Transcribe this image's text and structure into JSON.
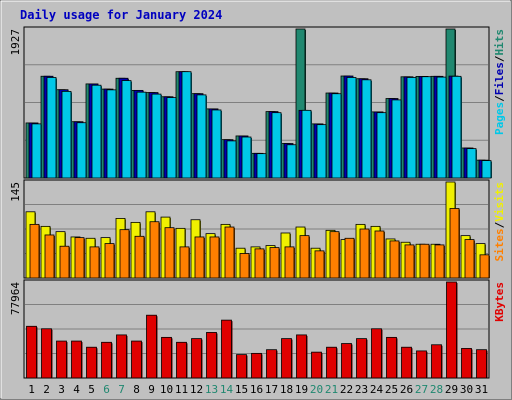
{
  "chart_data": {
    "type": "bar",
    "title": "Daily usage for January 2024",
    "categories": [
      "1",
      "2",
      "3",
      "4",
      "5",
      "6",
      "7",
      "8",
      "9",
      "10",
      "11",
      "12",
      "13",
      "14",
      "15",
      "16",
      "17",
      "18",
      "19",
      "20",
      "21",
      "22",
      "23",
      "24",
      "25",
      "26",
      "27",
      "28",
      "29",
      "30",
      "31"
    ],
    "weekend_days": [
      "6",
      "7",
      "13",
      "14",
      "20",
      "21",
      "27",
      "28"
    ],
    "panels": [
      {
        "id": "hits",
        "max_label": "1927",
        "ylim": [
          0,
          1927
        ],
        "right_label": [
          "Pages",
          "/",
          "Files",
          "/",
          "Hits"
        ],
        "right_label_colors": [
          "#00c8e8",
          "#000000",
          "#0000b0",
          "#000000",
          "#208870"
        ],
        "series": [
          {
            "name": "Hits",
            "color": "#208870",
            "values": [
              712,
              1316,
              1142,
              728,
              1217,
              1150,
              1290,
              1133,
              1105,
              1051,
              1375,
              1091,
              894,
              496,
              544,
              319,
              859,
              446,
              1927,
              700,
              1099,
              1319,
              1284,
              855,
              1028,
              1309,
              1314,
              1315,
              1927,
              388,
              231
            ]
          },
          {
            "name": "Files",
            "color": "#0000b0",
            "values": [
              712,
              1316,
              1142,
              728,
              1217,
              1150,
              1290,
              1133,
              1105,
              1051,
              1375,
              1091,
              894,
              496,
              544,
              319,
              859,
              446,
              875,
              700,
              1099,
              1319,
              1284,
              855,
              1028,
              1309,
              1314,
              1315,
              1318,
              388,
              231
            ]
          },
          {
            "name": "Pages",
            "color": "#00c8e8",
            "values": [
              700,
              1300,
              1120,
              715,
              1200,
              1140,
              1260,
              1110,
              1085,
              1040,
              1375,
              1075,
              880,
              480,
              530,
              315,
              845,
              430,
              875,
              690,
              1090,
              1300,
              1270,
              845,
              1010,
              1300,
              1310,
              1305,
              1315,
              380,
              225
            ]
          }
        ]
      },
      {
        "id": "visits",
        "max_label": "145",
        "ylim": [
          0,
          145
        ],
        "right_label": [
          "Sites",
          "/",
          "Visits"
        ],
        "right_label_colors": [
          "#ff8000",
          "#000000",
          "#f0f000"
        ],
        "series": [
          {
            "name": "Visits",
            "color": "#f0f000",
            "values": [
              100,
              78,
              70,
              62,
              60,
              61,
              90,
              84,
              100,
              92,
              75,
              88,
              67,
              81,
              45,
              47,
              49,
              68,
              77,
              45,
              72,
              58,
              81,
              78,
              59,
              54,
              51,
              51,
              145,
              64,
              52
            ]
          },
          {
            "name": "Sites",
            "color": "#ff8000",
            "values": [
              81,
              65,
              48,
              61,
              47,
              52,
              73,
              63,
              85,
              76,
              47,
              62,
              62,
              77,
              37,
              44,
              46,
              47,
              64,
              41,
              70,
              60,
              74,
              71,
              56,
              50,
              51,
              50,
              105,
              58,
              35
            ]
          }
        ]
      },
      {
        "id": "kbytes",
        "max_label": "77964",
        "ylim": [
          0,
          77964
        ],
        "right_label": [
          "KBytes"
        ],
        "right_label_colors": [
          "#e00000"
        ],
        "series": [
          {
            "name": "KBytes",
            "color": "#e00000",
            "values": [
              42000,
              40000,
              30000,
              30000,
              25000,
              29000,
              35000,
              30000,
              51000,
              33000,
              29000,
              32000,
              37000,
              47000,
              19000,
              20000,
              23000,
              32000,
              35000,
              21000,
              25000,
              28000,
              32000,
              40000,
              33000,
              25000,
              22000,
              27000,
              77964,
              24000,
              23000
            ]
          }
        ]
      }
    ]
  }
}
